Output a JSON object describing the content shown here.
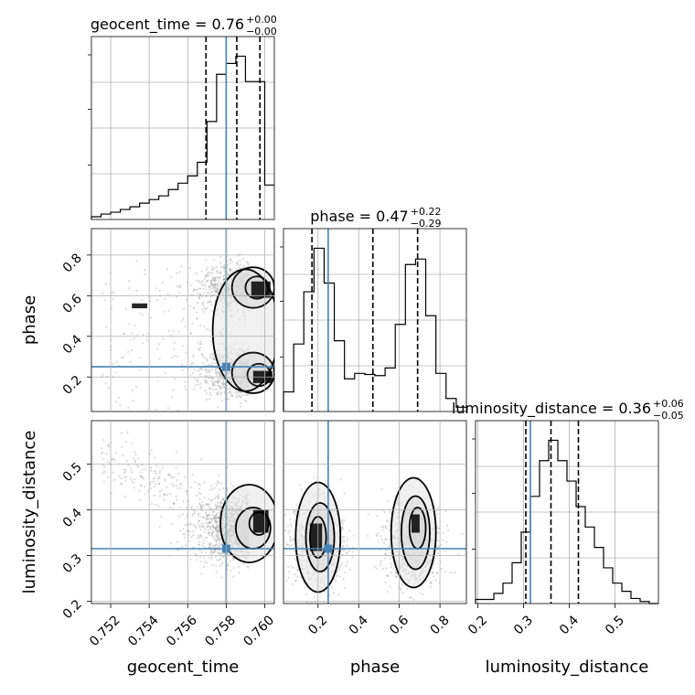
{
  "chart_data": {
    "type": "corner",
    "parameters": [
      "geocent_time",
      "phase",
      "luminosity_distance"
    ],
    "truths": {
      "geocent_time": 0.758,
      "phase": 0.25,
      "luminosity_distance": 0.315
    },
    "colors": {
      "truth": "#4682b4",
      "hist": "#000000",
      "grid": "#b0b0b0",
      "density_dark": "#000000",
      "scatter": "#999999"
    },
    "titles": {
      "geocent_time": {
        "name": "geocent_time",
        "median": "0.76",
        "plus": "+0.00",
        "minus": "−0.00"
      },
      "phase": {
        "name": "phase",
        "median": "0.47",
        "plus": "+0.22",
        "minus": "−0.29"
      },
      "luminosity_distance": {
        "name": "luminosity_distance",
        "median": "0.36",
        "plus": "+0.06",
        "minus": "−0.05"
      }
    },
    "axis_labels": {
      "geocent_time": "geocent_time",
      "phase": "phase",
      "luminosity_distance": "luminosity_distance"
    },
    "ranges": {
      "geocent_time": [
        0.751,
        0.7605
      ],
      "phase": [
        0.03,
        0.93
      ],
      "luminosity_distance": [
        0.195,
        0.595
      ]
    },
    "ticks": {
      "geocent_time": [
        0.752,
        0.754,
        0.756,
        0.758,
        0.76
      ],
      "phase": [
        0.2,
        0.4,
        0.6,
        0.8
      ],
      "luminosity_distance": [
        0.2,
        0.3,
        0.4,
        0.5
      ]
    },
    "tick_labels": {
      "geocent_time": [
        "0.752",
        "0.754",
        "0.756",
        "0.758",
        "0.760"
      ],
      "phase": [
        "0.2",
        "0.4",
        "0.6",
        "0.8"
      ],
      "luminosity_distance": [
        "0.2",
        "0.3",
        "0.4",
        "0.5"
      ]
    },
    "quantiles": {
      "geocent_time": [
        0.75695,
        0.75855,
        0.75975
      ],
      "phase": [
        0.17,
        0.47,
        0.69
      ],
      "luminosity_distance": [
        0.305,
        0.36,
        0.42
      ]
    },
    "histograms": {
      "geocent_time": {
        "edges": [
          0.751,
          0.7515,
          0.752,
          0.7525,
          0.753,
          0.7535,
          0.754,
          0.7545,
          0.755,
          0.7555,
          0.756,
          0.7565,
          0.757,
          0.7575,
          0.758,
          0.7585,
          0.759,
          0.7595,
          0.76,
          0.7605
        ],
        "values": [
          3,
          6,
          8,
          11,
          14,
          18,
          22,
          26,
          33,
          40,
          48,
          63,
          108,
          160,
          172,
          180,
          152,
          152,
          38
        ]
      },
      "phase": {
        "edges": [
          0.03,
          0.08,
          0.13,
          0.18,
          0.23,
          0.28,
          0.33,
          0.38,
          0.43,
          0.48,
          0.53,
          0.58,
          0.63,
          0.68,
          0.73,
          0.78,
          0.83,
          0.88,
          0.93
        ],
        "values": [
          18,
          62,
          110,
          150,
          118,
          65,
          30,
          35,
          34,
          33,
          40,
          80,
          135,
          140,
          88,
          35,
          12,
          4
        ]
      },
      "luminosity_distance": {
        "edges": [
          0.195,
          0.215,
          0.235,
          0.255,
          0.275,
          0.295,
          0.315,
          0.335,
          0.355,
          0.375,
          0.395,
          0.415,
          0.435,
          0.455,
          0.475,
          0.495,
          0.515,
          0.535,
          0.555,
          0.575,
          0.595
        ],
        "values": [
          4,
          4,
          10,
          20,
          40,
          70,
          105,
          140,
          160,
          140,
          120,
          95,
          75,
          55,
          35,
          20,
          12,
          5,
          2,
          0
        ]
      }
    },
    "grid": true
  }
}
